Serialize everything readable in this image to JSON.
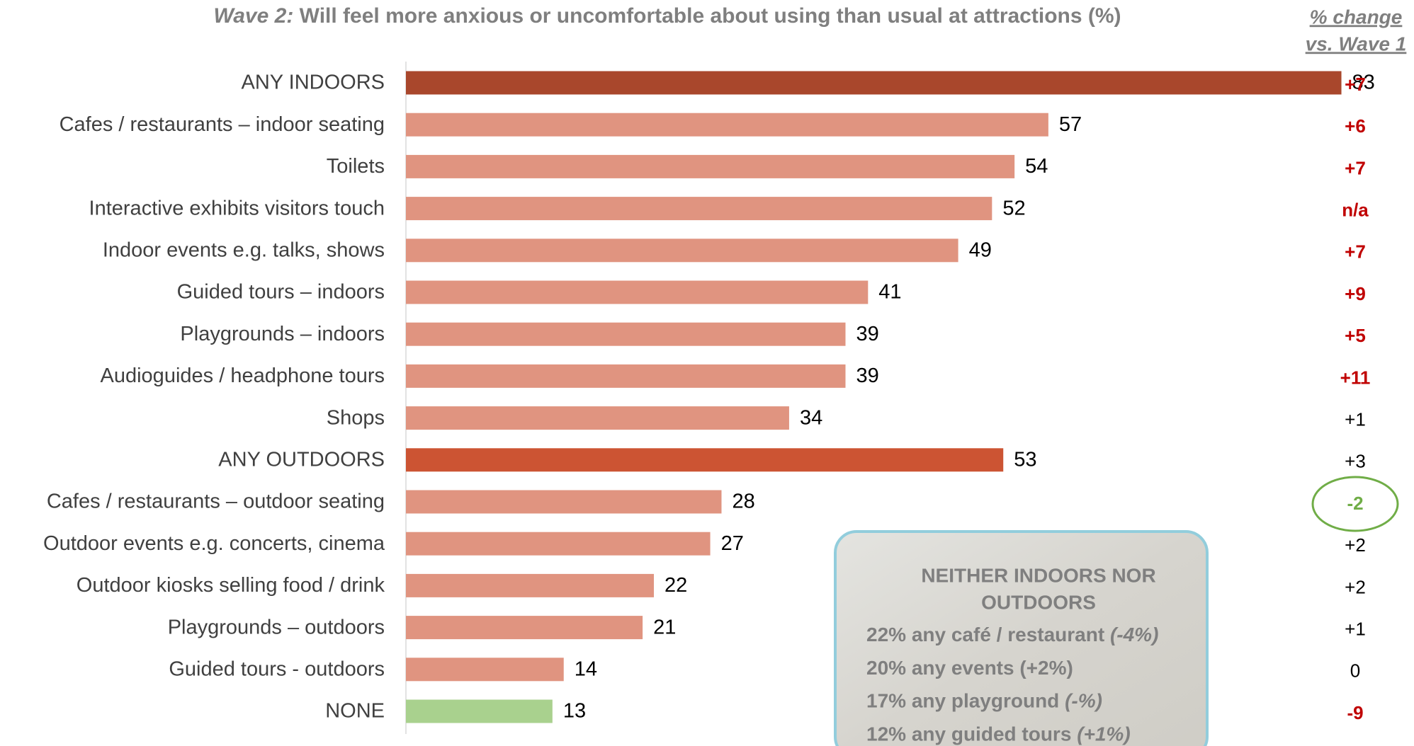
{
  "chart_data": {
    "type": "bar",
    "orientation": "horizontal",
    "title_prefix": "Wave 2:",
    "title": "Will feel more anxious or uncomfortable about using than usual at attractions (%)",
    "categories": [
      "ANY INDOORS",
      "Cafes / restaurants – indoor seating",
      "Toilets",
      "Interactive exhibits visitors touch",
      "Indoor events e.g. talks, shows",
      "Guided tours – indoors",
      "Playgrounds – indoors",
      "Audioguides / headphone tours",
      "Shops",
      "ANY OUTDOORS",
      "Cafes / restaurants – outdoor seating",
      "Outdoor events e.g. concerts, cinema",
      "Outdoor kiosks selling food / drink",
      "Playgrounds – outdoors",
      "Guided tours - outdoors",
      "NONE"
    ],
    "values": [
      83,
      57,
      54,
      52,
      49,
      41,
      39,
      39,
      34,
      53,
      28,
      27,
      22,
      21,
      14,
      13
    ],
    "colors": [
      "#a9472c",
      "#e09480",
      "#e09480",
      "#e09480",
      "#e09480",
      "#e09480",
      "#e09480",
      "#e09480",
      "#e09480",
      "#cc5433",
      "#e09480",
      "#e09480",
      "#e09480",
      "#e09480",
      "#e09480",
      "#a9d18e"
    ],
    "xlim": [
      0,
      100
    ],
    "change": {
      "title": [
        "% change",
        "vs. Wave 1"
      ],
      "labels": [
        "+7",
        "+6",
        "+7",
        "n/a",
        "+7",
        "+9",
        "+5",
        "+11",
        "+1",
        "+3",
        "-2",
        "+2",
        "+2",
        "+1",
        "0",
        "-9"
      ],
      "colors": [
        "#c00000",
        "#c00000",
        "#c00000",
        "#c00000",
        "#c00000",
        "#c00000",
        "#c00000",
        "#c00000",
        "#000000",
        "#000000",
        "#70ad47",
        "#000000",
        "#000000",
        "#000000",
        "#000000",
        "#c00000"
      ],
      "highlight": 10
    },
    "inset": {
      "heading": [
        "NEITHER INDOORS NOR",
        "OUTDOORS"
      ],
      "lines": [
        {
          "text": "22% any café / restaurant",
          "note": "(-4%)"
        },
        {
          "text": "20% any events (+2%)"
        },
        {
          "text": "17% any playground",
          "note": "(-%)"
        },
        {
          "text": "12% any guided tours",
          "note": "(+1%)"
        }
      ]
    }
  }
}
